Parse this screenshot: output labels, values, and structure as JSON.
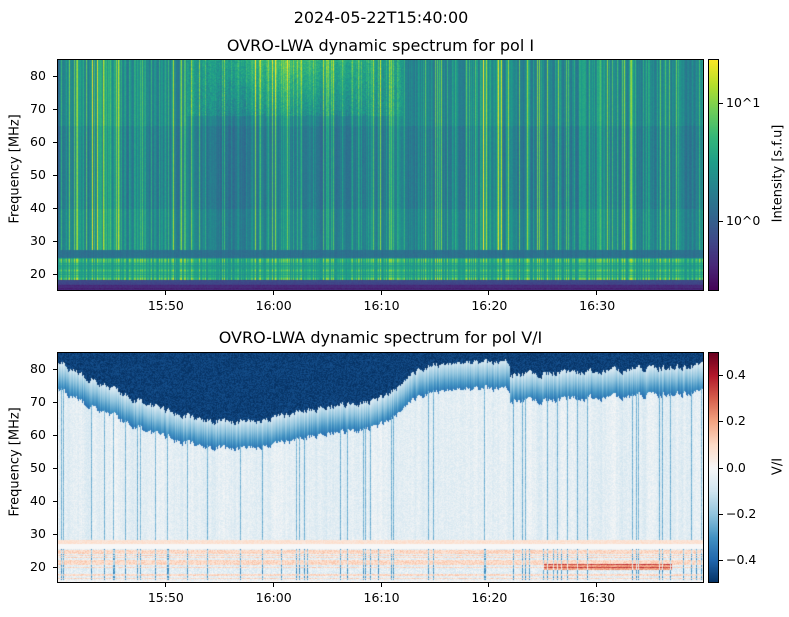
{
  "suptitle": "2024-05-22T15:40:00",
  "chart_data": [
    {
      "type": "heatmap",
      "title": "OVRO-LWA dynamic spectrum for pol I",
      "xlabel": "",
      "ylabel": "Frequency [MHz]",
      "x_range": [
        "15:40",
        "16:40"
      ],
      "ylim": [
        15,
        85
      ],
      "x_ticks": [
        "15:50",
        "16:00",
        "16:10",
        "16:20",
        "16:30"
      ],
      "y_ticks": [
        20,
        30,
        40,
        50,
        60,
        70,
        80
      ],
      "colorbar": {
        "label": "Intensity [s.f.u]",
        "scale": "log",
        "range": [
          0.25,
          24
        ],
        "ticks": [
          {
            "value": 1,
            "label": "10^0",
            "base": "10",
            "exp": "0"
          },
          {
            "value": 10,
            "label": "10^1",
            "base": "10",
            "exp": "1"
          }
        ],
        "colormap": "viridis"
      }
    },
    {
      "type": "heatmap",
      "title": "OVRO-LWA dynamic spectrum for pol V/I",
      "xlabel": "",
      "ylabel": "Frequency [MHz]",
      "x_range": [
        "15:40",
        "16:40"
      ],
      "ylim": [
        15,
        85
      ],
      "x_ticks": [
        "15:50",
        "16:00",
        "16:10",
        "16:20",
        "16:30"
      ],
      "y_ticks": [
        20,
        30,
        40,
        50,
        60,
        70,
        80
      ],
      "colorbar": {
        "label": "V/I",
        "scale": "linear",
        "range": [
          -0.5,
          0.5
        ],
        "ticks": [
          {
            "value": -0.4,
            "label": "−0.4"
          },
          {
            "value": -0.2,
            "label": "−0.2"
          },
          {
            "value": 0.0,
            "label": "0.0"
          },
          {
            "value": 0.2,
            "label": "0.2"
          },
          {
            "value": 0.4,
            "label": "0.4"
          }
        ],
        "colormap": "RdBu_r"
      }
    }
  ]
}
